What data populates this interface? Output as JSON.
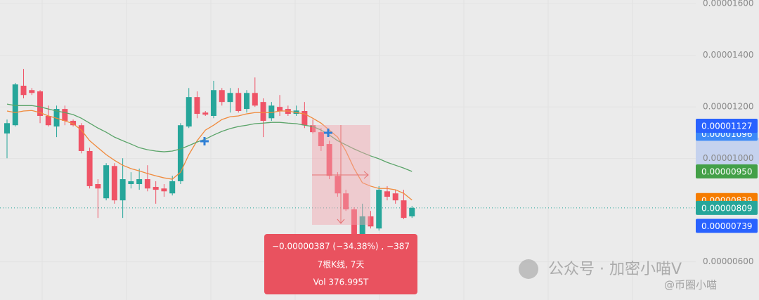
{
  "chart_data": {
    "type": "candlestick",
    "up_color": "#26a69a",
    "down_color": "#ef5366",
    "open": [
      1.097e-05,
      1.129e-05,
      1.282e-05,
      1.265e-05,
      1.26e-05,
      1.165e-05,
      1.124e-05,
      1.192e-05,
      1.146e-05,
      1.129e-05,
      1.029e-05,
      9.01e-06,
      8.46e-06,
      9.71e-06,
      8.38e-06,
      9.01e-06,
      9.01e-06,
      9.2e-06,
      8.9e-06,
      8.84e-06,
      8.65e-06,
      9.12e-06,
      1.124e-05,
      1.238e-05,
      1.178e-05,
      1.165e-05,
      1.265e-05,
      1.219e-05,
      1.254e-05,
      1.192e-05,
      1.254e-05,
      1.219e-05,
      1.156e-05,
      1.2e-05,
      1.192e-05,
      1.173e-05,
      1.184e-05,
      1.129e-05,
      1.102e-05,
      1.056e-05,
      9.33e-06,
      8.65e-06,
      8.03e-06,
      6.75e-06,
      7.76e-06,
      7.29e-06,
      8.73e-06,
      8.65e-06,
      8.38e-06,
      7.76e-06
    ],
    "high": [
      1.151e-05,
      1.293e-05,
      1.347e-05,
      1.273e-05,
      1.265e-05,
      1.205e-05,
      1.205e-05,
      1.205e-05,
      1.151e-05,
      1.137e-05,
      1.042e-05,
      9.2e-06,
      9.82e-06,
      9.82e-06,
      1.001e-05,
      9.47e-06,
      9.61e-06,
      9.74e-06,
      9.12e-06,
      9.01e-06,
      9.33e-06,
      1.137e-05,
      1.273e-05,
      1.26e-05,
      1.184e-05,
      1.301e-05,
      1.273e-05,
      1.273e-05,
      1.273e-05,
      1.265e-05,
      1.314e-05,
      1.233e-05,
      1.219e-05,
      1.246e-05,
      1.205e-05,
      1.205e-05,
      1.219e-05,
      1.151e-05,
      1.118e-05,
      1.069e-05,
      9.47e-06,
      8.79e-06,
      8.11e-06,
      8.25e-06,
      7.97e-06,
      8.93e-06,
      8.93e-06,
      8.79e-06,
      8.79e-06,
      8.16e-06
    ],
    "low": [
      1.001e-05,
      1.124e-05,
      1.233e-05,
      1.246e-05,
      1.137e-05,
      1.124e-05,
      1.083e-05,
      1.129e-05,
      1.124e-05,
      1.02e-05,
      8.84e-06,
      7.7e-06,
      8.38e-06,
      8.25e-06,
      7.7e-06,
      8.84e-06,
      8.79e-06,
      8.73e-06,
      8.25e-06,
      8.52e-06,
      8.57e-06,
      9.01e-06,
      1.118e-05,
      1.156e-05,
      1.165e-05,
      1.156e-05,
      1.205e-05,
      1.178e-05,
      1.178e-05,
      1.178e-05,
      1.2e-05,
      1.083e-05,
      1.146e-05,
      1.165e-05,
      1.165e-05,
      1.165e-05,
      1.118e-05,
      1.097e-05,
      1.029e-05,
      9.2e-06,
      8.52e-06,
      7.97e-06,
      6.61e-06,
      6.56e-06,
      7.29e-06,
      7.21e-06,
      8.38e-06,
      8.25e-06,
      7.65e-06,
      7.7e-06
    ],
    "close": [
      1.137e-05,
      1.287e-05,
      1.246e-05,
      1.254e-05,
      1.165e-05,
      1.129e-05,
      1.192e-05,
      1.146e-05,
      1.129e-05,
      1.029e-05,
      8.93e-06,
      8.84e-06,
      9.74e-06,
      8.38e-06,
      9.2e-06,
      9.12e-06,
      9.2e-06,
      8.84e-06,
      8.79e-06,
      8.73e-06,
      9.12e-06,
      1.129e-05,
      1.238e-05,
      1.173e-05,
      1.17e-05,
      1.265e-05,
      1.219e-05,
      1.254e-05,
      1.184e-05,
      1.254e-05,
      1.205e-05,
      1.146e-05,
      1.205e-05,
      1.184e-05,
      1.173e-05,
      1.186e-05,
      1.129e-05,
      1.102e-05,
      1.048e-05,
      9.33e-06,
      8.65e-06,
      8.03e-06,
      6.75e-06,
      7.76e-06,
      7.37e-06,
      8.79e-06,
      8.52e-06,
      8.38e-06,
      7.7e-06,
      8.09e-06
    ],
    "overlays": [
      {
        "color": "#f08a3c",
        "values": [
          1.184e-05,
          1.178e-05,
          1.184e-05,
          1.186e-05,
          1.178e-05,
          1.165e-05,
          1.156e-05,
          1.146e-05,
          1.135e-05,
          1.11e-05,
          1.069e-05,
          1.042e-05,
          1.015e-05,
          9.93e-06,
          9.74e-06,
          9.61e-06,
          9.52e-06,
          9.42e-06,
          9.33e-06,
          9.25e-06,
          9.2e-06,
          9.47e-06,
          1.015e-05,
          1.069e-05,
          1.11e-05,
          1.129e-05,
          1.151e-05,
          1.162e-05,
          1.165e-05,
          1.173e-05,
          1.178e-05,
          1.178e-05,
          1.178e-05,
          1.184e-05,
          1.184e-05,
          1.178e-05,
          1.173e-05,
          1.156e-05,
          1.137e-05,
          1.11e-05,
          1.083e-05,
          1.029e-05,
          9.61e-06,
          9.06e-06,
          8.93e-06,
          8.84e-06,
          8.84e-06,
          8.79e-06,
          8.65e-06,
          8.39e-06
        ]
      },
      {
        "color": "#5aa469",
        "values": [
          1.211e-05,
          1.205e-05,
          1.205e-05,
          1.205e-05,
          1.2e-05,
          1.192e-05,
          1.184e-05,
          1.178e-05,
          1.17e-05,
          1.156e-05,
          1.137e-05,
          1.118e-05,
          1.102e-05,
          1.083e-05,
          1.069e-05,
          1.056e-05,
          1.042e-05,
          1.034e-05,
          1.029e-05,
          1.026e-05,
          1.029e-05,
          1.037e-05,
          1.05e-05,
          1.064e-05,
          1.075e-05,
          1.091e-05,
          1.105e-05,
          1.116e-05,
          1.124e-05,
          1.129e-05,
          1.135e-05,
          1.137e-05,
          1.14e-05,
          1.14e-05,
          1.137e-05,
          1.135e-05,
          1.129e-05,
          1.124e-05,
          1.11e-05,
          1.091e-05,
          1.069e-05,
          1.053e-05,
          1.037e-05,
          1.023e-05,
          1.01e-05,
          9.99e-06,
          9.85e-06,
          9.74e-06,
          9.63e-06,
          9.5e-06
        ]
      }
    ],
    "ylim": [
      4.52e-06,
      1.614e-05
    ],
    "yticks": [
      {
        "value": 1.6e-05,
        "label": "0.00001600"
      },
      {
        "value": 1.4e-05,
        "label": "0.00001400"
      },
      {
        "value": 1.2e-05,
        "label": "0.00001200"
      },
      {
        "value": 1e-05,
        "label": "0.00001000"
      },
      {
        "value": 6e-06,
        "label": "0.00000600"
      }
    ],
    "current_price_line": 8.09e-06,
    "price_tags": [
      {
        "value": 1.096e-05,
        "label": "0.00001096",
        "color": "#3d8af7"
      },
      {
        "value": 1.127e-05,
        "label": "0.00001127",
        "color": "#2962ff"
      },
      {
        "value": 9.5e-06,
        "label": "0.00000950",
        "color": "#43a047"
      },
      {
        "value": 8.39e-06,
        "label": "0.00000839",
        "color": "#f57c00"
      },
      {
        "value": 8.09e-06,
        "label": "0.00000809",
        "color": "#26a69a"
      },
      {
        "value": 7.39e-06,
        "label": "0.00000739",
        "color": "#2962ff"
      }
    ],
    "tooltip": [
      "−0.00000387 (−34.38%) , −387",
      "7根K线, 7天",
      "Vol 376.995T"
    ],
    "watermark": [
      "公众号 · 加密小喵V",
      "@币圈小喵"
    ]
  }
}
